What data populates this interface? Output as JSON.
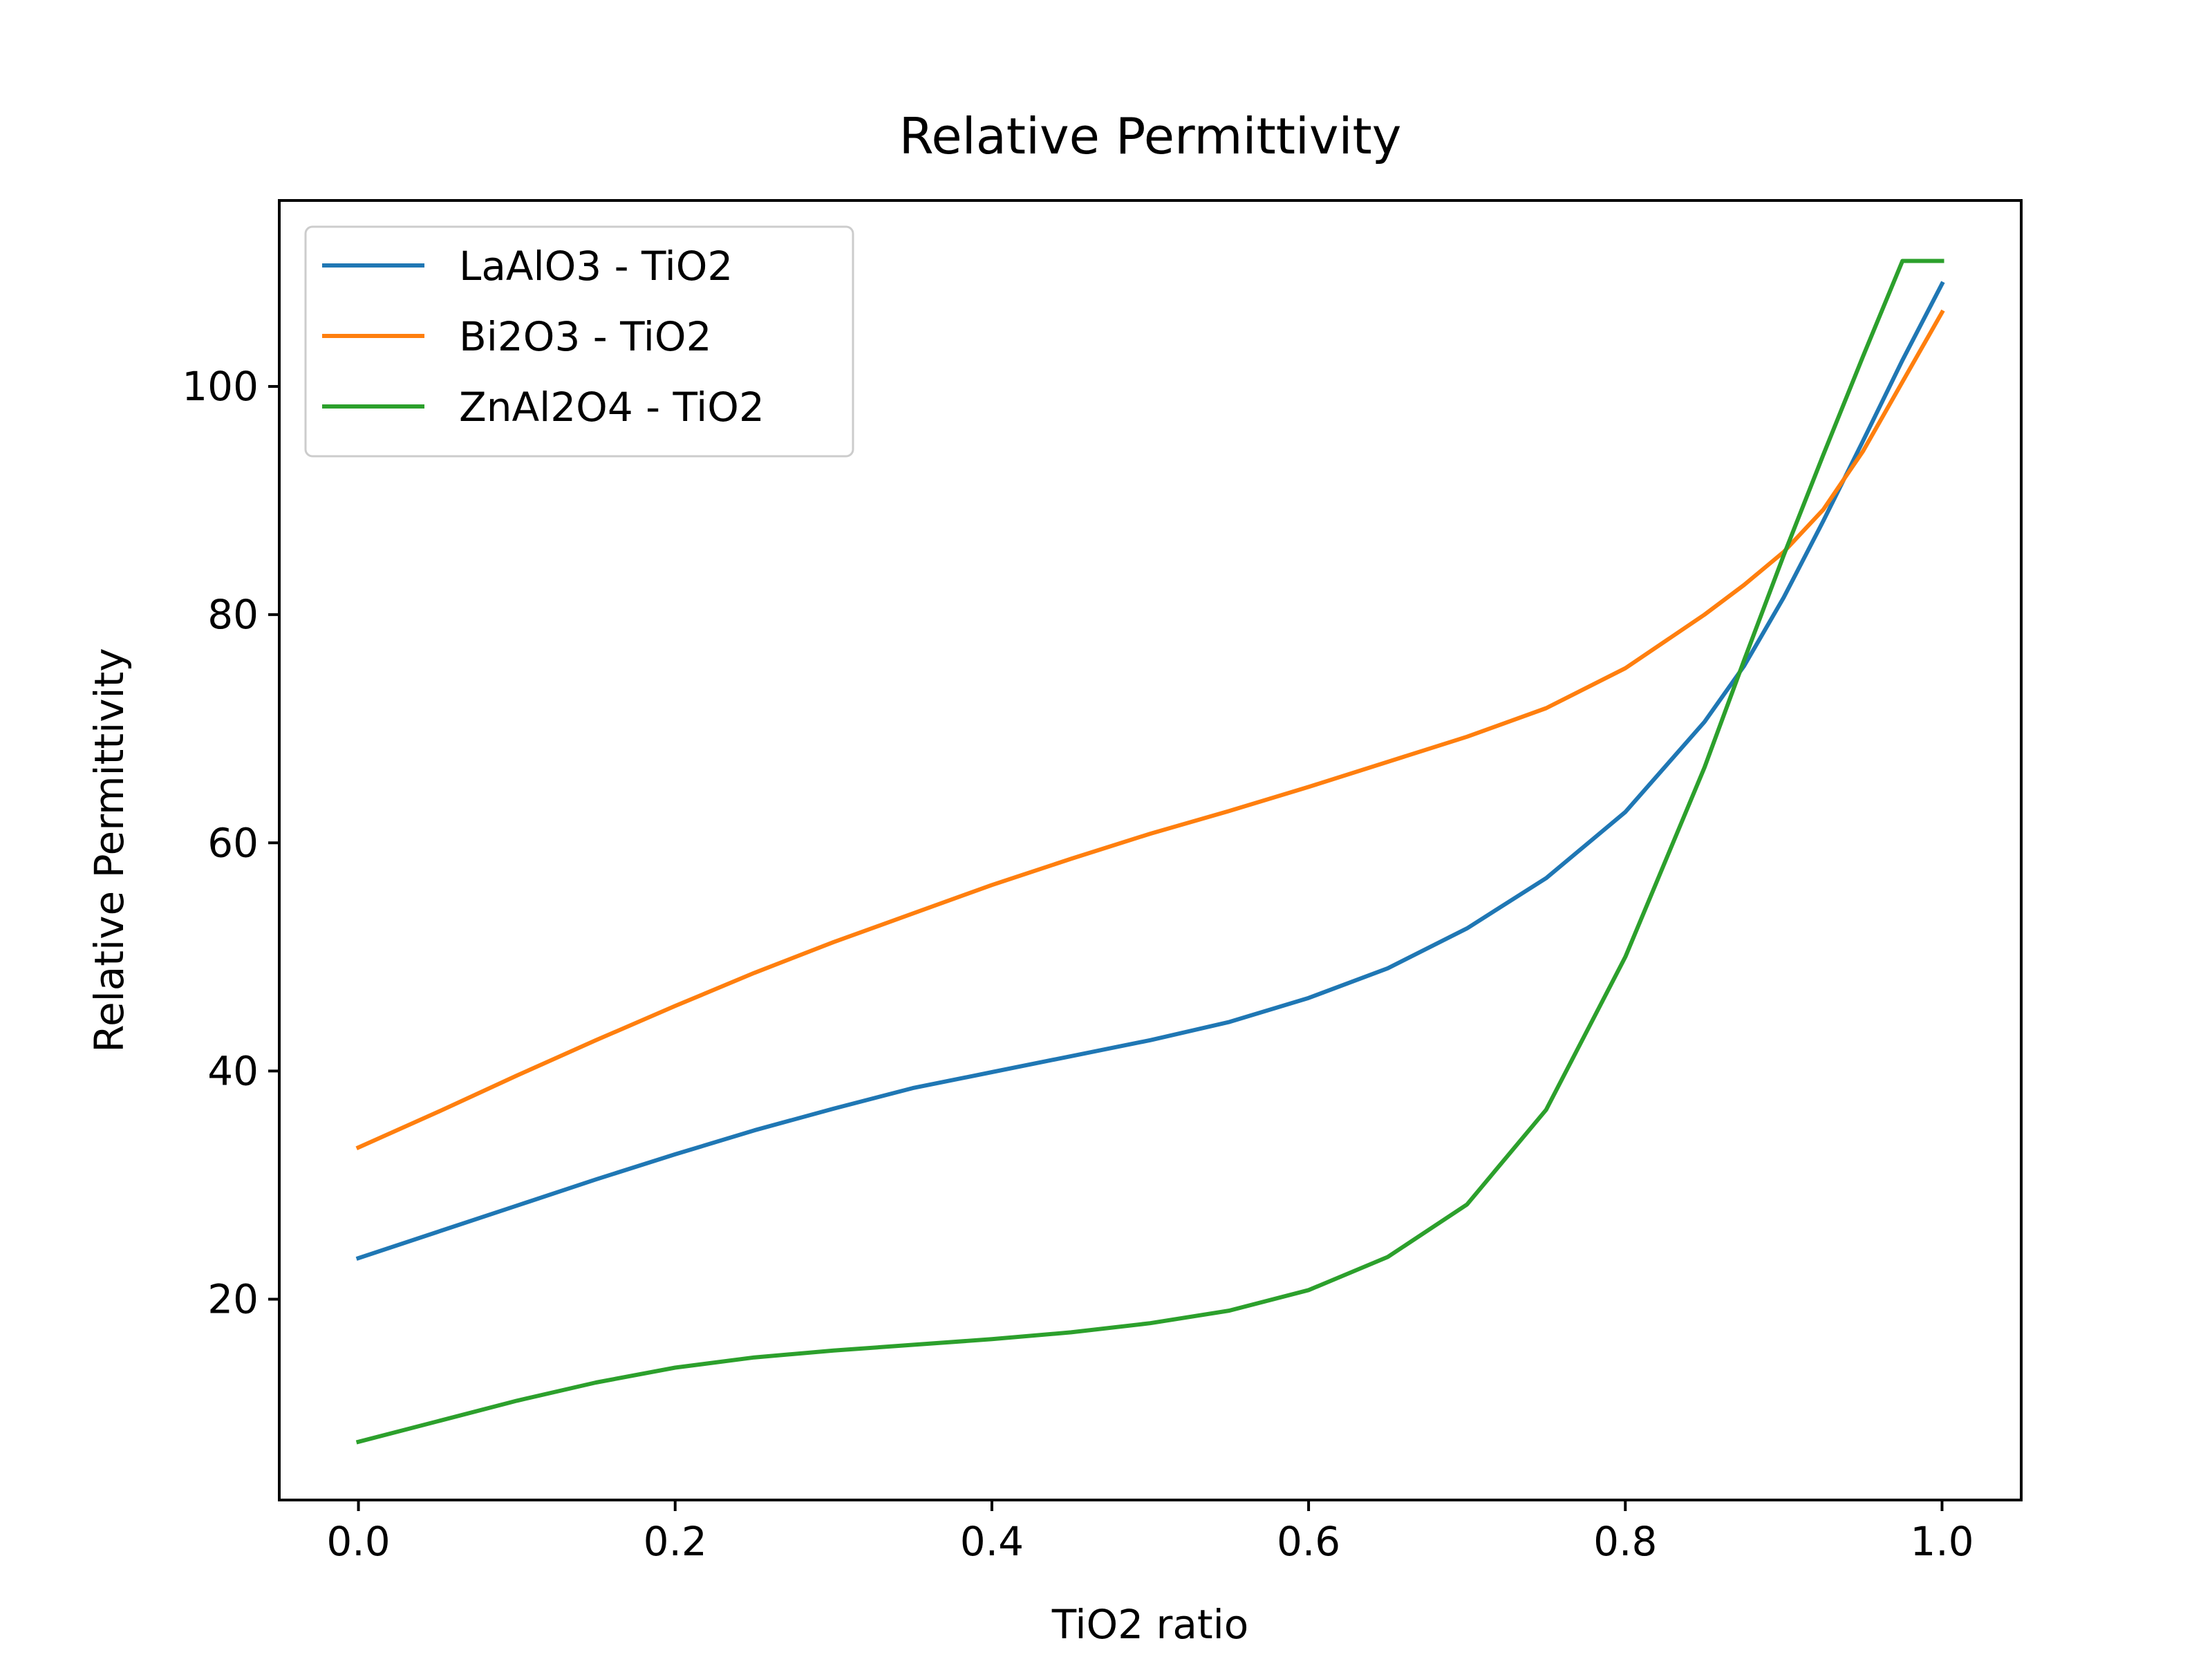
{
  "chart_data": {
    "type": "line",
    "title": "Relative Permittivity",
    "xlabel": "TiO2 ratio",
    "ylabel": "Relative Permittivity",
    "xlim": [
      -0.05,
      1.05
    ],
    "ylim": [
      2.4,
      116.3
    ],
    "xticks": [
      0.0,
      0.2,
      0.4,
      0.6,
      0.8,
      1.0
    ],
    "xtick_labels": [
      "0.0",
      "0.2",
      "0.4",
      "0.6",
      "0.8",
      "1.0"
    ],
    "yticks": [
      20,
      40,
      60,
      80,
      100
    ],
    "ytick_labels": [
      "20",
      "40",
      "60",
      "80",
      "100"
    ],
    "grid": false,
    "legend_position": "upper-left",
    "x": [
      0.0,
      0.05,
      0.1,
      0.15,
      0.2,
      0.25,
      0.3,
      0.35,
      0.4,
      0.45,
      0.5,
      0.55,
      0.6,
      0.65,
      0.7,
      0.75,
      0.8,
      0.85,
      0.875,
      0.9,
      0.925,
      0.95,
      0.975,
      1.0
    ],
    "series": [
      {
        "name": "LaAlO3 - TiO2",
        "color": "#1f77b4",
        "values": [
          23.6,
          25.9,
          28.2,
          30.5,
          32.7,
          34.8,
          36.7,
          38.5,
          39.9,
          41.3,
          42.7,
          44.3,
          46.4,
          49.0,
          52.5,
          56.9,
          62.7,
          70.6,
          75.5,
          81.5,
          88.2,
          95.2,
          102.3,
          109.0
        ]
      },
      {
        "name": "Bi2O3 - TiO2",
        "color": "#ff7f0e",
        "values": [
          33.3,
          36.4,
          39.6,
          42.7,
          45.7,
          48.6,
          51.3,
          53.8,
          56.3,
          58.6,
          60.8,
          62.8,
          64.9,
          67.1,
          69.3,
          71.8,
          75.3,
          80.0,
          82.6,
          85.5,
          89.2,
          94.3,
          100.4,
          106.5
        ]
      },
      {
        "name": "ZnAl2O4 - TiO2",
        "color": "#2ca02c",
        "values": [
          7.5,
          9.3,
          11.1,
          12.7,
          14.0,
          14.9,
          15.5,
          16.0,
          16.5,
          17.1,
          17.9,
          19.0,
          20.8,
          23.7,
          28.3,
          36.6,
          50.0,
          66.6,
          76.0,
          85.2,
          94.0,
          102.6,
          111.0,
          111.0
        ]
      }
    ]
  }
}
